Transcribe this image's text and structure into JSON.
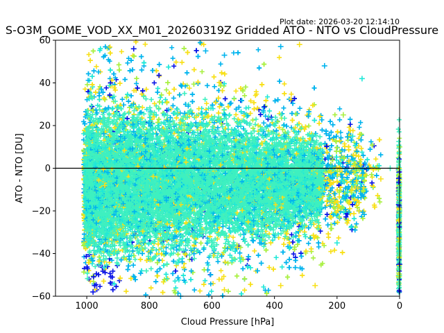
{
  "chart_data": {
    "type": "scatter",
    "title": "S-O3M_GOME_VOD_XX_M01_20260319Z Gridded ATO - NTO vs CloudPressure",
    "subtitle": "Plot date: 2026-03-20 12:14:10",
    "xlabel": "Cloud Pressure [hPa]",
    "ylabel": "ATO - NTO [DU]",
    "xlim": [
      1100,
      0
    ],
    "ylim": [
      -60,
      60
    ],
    "x_reversed": true,
    "xticks": [
      "1000",
      "800",
      "600",
      "400",
      "200",
      "0"
    ],
    "yticks": [
      "60",
      "40",
      "20",
      "0",
      "−20",
      "−40",
      "−60"
    ],
    "zero_line": 0,
    "marker": "+",
    "grid": false,
    "legend": "none",
    "colors": {
      "dense": "#3ef0c0",
      "light": "#00b4ee",
      "yellow": "#f8e018",
      "green": "#a8f040",
      "blue": "#0a14e6",
      "cyan": "#20e8d8"
    },
    "density": {
      "x_range": [
        1010,
        200
      ],
      "core_y": [
        -35,
        25
      ],
      "extremes_y": [
        -60,
        60
      ]
    },
    "sample_points": [
      {
        "x": 980,
        "y": -58,
        "c": "blue"
      },
      {
        "x": 975,
        "y": -55,
        "c": "blue"
      },
      {
        "x": 850,
        "y": 56,
        "c": "blue"
      },
      {
        "x": 620,
        "y": 55,
        "c": "light"
      },
      {
        "x": 560,
        "y": 53,
        "c": "light"
      },
      {
        "x": 380,
        "y": 57,
        "c": "light"
      },
      {
        "x": 320,
        "y": 58,
        "c": "yellow"
      },
      {
        "x": 240,
        "y": 48,
        "c": "light"
      },
      {
        "x": 120,
        "y": 42,
        "c": "cyan"
      },
      {
        "x": 180,
        "y": 25,
        "c": "green"
      },
      {
        "x": 150,
        "y": 15,
        "c": "cyan"
      },
      {
        "x": 100,
        "y": 0,
        "c": "light"
      },
      {
        "x": 60,
        "y": -5,
        "c": "yellow"
      },
      {
        "x": 130,
        "y": -20,
        "c": "yellow"
      },
      {
        "x": 200,
        "y": -35,
        "c": "cyan"
      },
      {
        "x": 270,
        "y": -55,
        "c": "yellow"
      },
      {
        "x": 380,
        "y": -55,
        "c": "yellow"
      },
      {
        "x": 560,
        "y": -57,
        "c": "yellow"
      },
      {
        "x": 700,
        "y": -60,
        "c": "light"
      },
      {
        "x": 30,
        "y": 0,
        "c": "dense"
      },
      {
        "x": 0,
        "y": -20,
        "c": "dense"
      },
      {
        "x": 0,
        "y": 10,
        "c": "green"
      },
      {
        "x": 0,
        "y": -45,
        "c": "blue"
      }
    ]
  }
}
